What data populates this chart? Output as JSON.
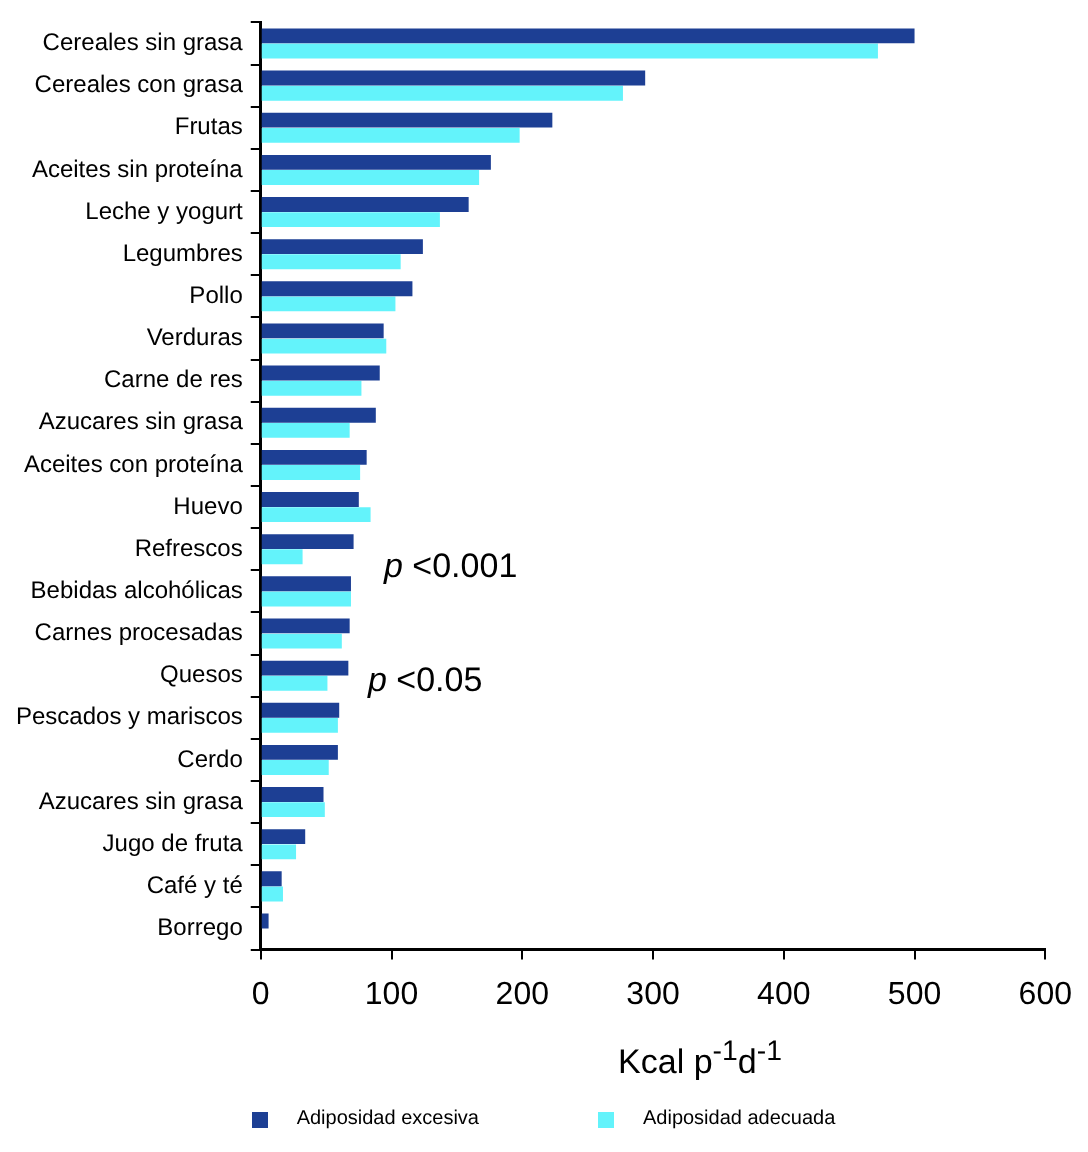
{
  "chart_data": {
    "type": "bar",
    "orientation": "horizontal",
    "xlabel": "Kcal p$^{-1}$d$^{-1}$",
    "categories": [
      "Cereales sin grasa",
      "Cereales con grasa",
      "Frutas",
      "Aceites sin proteína",
      "Leche y yogurt",
      "Legumbres",
      "Pollo",
      "Verduras",
      "Carne de res",
      "Azucares sin grasa",
      "Aceites con proteína",
      "Huevo",
      "Refrescos",
      "Bebidas alcohólicas",
      "Carnes procesadas",
      "Quesos",
      "Pescados y mariscos",
      "Cerdo",
      "Azucares sin grasa",
      "Jugo de fruta",
      "Café y té",
      "Borrego"
    ],
    "series": [
      {
        "name": "Adiposidad excesiva",
        "color": "#1d3f94",
        "values": [
          500,
          294,
          223,
          176,
          159,
          124,
          116,
          94,
          91,
          88,
          81,
          75,
          71,
          69,
          68,
          67,
          60,
          59,
          48,
          34,
          16,
          6
        ]
      },
      {
        "name": "Adiposidad adecuada",
        "color": "#63f3fb",
        "values": [
          472,
          277,
          198,
          167,
          137,
          107,
          103,
          96,
          77,
          68,
          76,
          84,
          32,
          69,
          62,
          51,
          59,
          52,
          49,
          27,
          17,
          null
        ]
      }
    ],
    "xlim": [
      0,
      600
    ],
    "xticks": [
      0,
      100,
      200,
      300,
      400,
      500,
      600
    ],
    "grid": false,
    "legend": "bottom",
    "annotations": [
      "p <0.001",
      "p <0.05"
    ]
  }
}
